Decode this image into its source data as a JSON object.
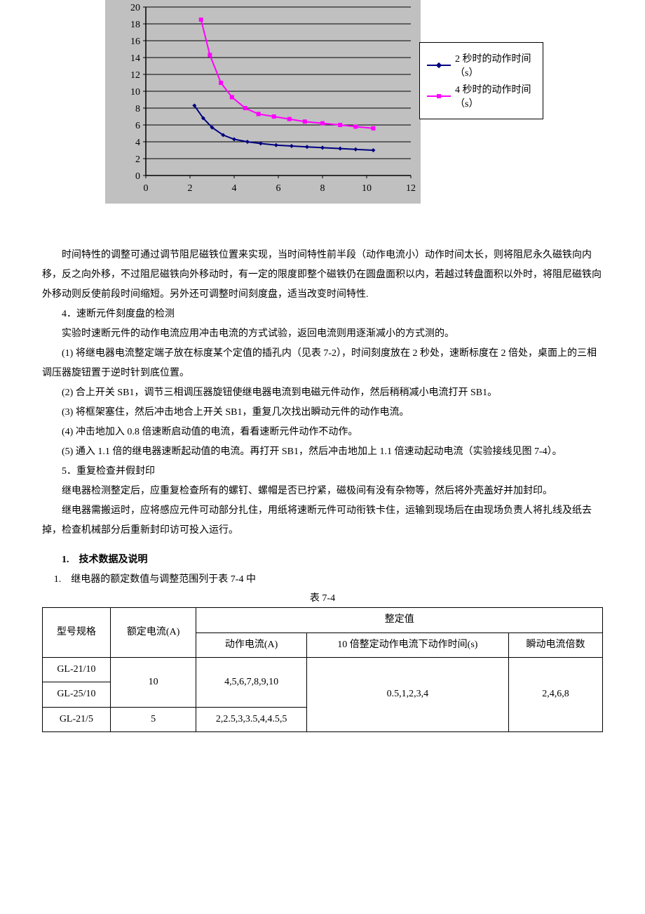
{
  "chart": {
    "type": "line",
    "background_color": "#c0c0c0",
    "plot_area_color": "#c0c0c0",
    "gridline_color": "#000000",
    "axis_color": "#000000",
    "tick_fontsize": 14,
    "xlim": [
      0,
      12
    ],
    "ylim": [
      0,
      20
    ],
    "x_ticks": [
      0,
      2,
      4,
      6,
      8,
      10,
      12
    ],
    "y_ticks": [
      0,
      2,
      4,
      6,
      8,
      10,
      12,
      14,
      16,
      18,
      20
    ],
    "gridlines_y_only": true,
    "series": [
      {
        "name": "2 秒时的动作时间（s）",
        "color": "#000080",
        "marker": "diamond",
        "marker_size": 6,
        "line_width": 2,
        "points": [
          [
            2.2,
            8.3
          ],
          [
            2.6,
            6.8
          ],
          [
            3.0,
            5.7
          ],
          [
            3.5,
            4.8
          ],
          [
            4.0,
            4.3
          ],
          [
            4.6,
            4.0
          ],
          [
            5.2,
            3.8
          ],
          [
            5.9,
            3.6
          ],
          [
            6.6,
            3.5
          ],
          [
            7.3,
            3.4
          ],
          [
            8.0,
            3.3
          ],
          [
            8.8,
            3.2
          ],
          [
            9.5,
            3.1
          ],
          [
            10.3,
            3.0
          ]
        ]
      },
      {
        "name": "4 秒时的动作时间（s）",
        "color": "#ff00ff",
        "marker": "square",
        "marker_size": 6,
        "line_width": 2,
        "points": [
          [
            2.5,
            18.5
          ],
          [
            2.9,
            14.3
          ],
          [
            3.4,
            11.0
          ],
          [
            3.9,
            9.3
          ],
          [
            4.5,
            8.0
          ],
          [
            5.1,
            7.3
          ],
          [
            5.8,
            7.0
          ],
          [
            6.5,
            6.7
          ],
          [
            7.2,
            6.4
          ],
          [
            8.0,
            6.2
          ],
          [
            8.8,
            6.0
          ],
          [
            9.5,
            5.8
          ],
          [
            10.3,
            5.6
          ]
        ]
      }
    ],
    "legend": {
      "border_color": "#000000",
      "background": "#ffffff",
      "items": [
        {
          "label": "2 秒时的动作时间（s）",
          "color": "#000080",
          "marker": "diamond"
        },
        {
          "label": "4 秒时的动作时间（s）",
          "color": "#ff00ff",
          "marker": "square"
        }
      ]
    }
  },
  "text": {
    "p1": "时间特性的调整可通过调节阻尼磁铁位置来实现，当时间特性前半段（动作电流小）动作时间太长，则将阻尼永久磁铁向内移，反之向外移，不过阻尼磁铁向外移动时，有一定的限度即整个磁铁仍在圆盘面积以内，若越过转盘面积以外时，将阻尼磁铁向外移动则反使前段时间缩短。另外还可调整时间刻度盘，适当改变时间特性.",
    "h4": "4．速断元件刻度盘的检测",
    "p2": "实验时速断元件的动作电流应用冲击电流的方式试验，返回电流则用逐渐减小的方式测的。",
    "p3": "(1) 将继电器电流整定端子放在标度某个定值的插孔内（见表 7-2），时间刻度放在 2 秒处，速断标度在 2 倍处，桌面上的三相调压器旋钮置于逆时针到底位置。",
    "p4": "(2) 合上开关 SB1，调节三相调压器旋钮使继电器电流到电磁元件动作，然后稍稍减小电流打开 SB1。",
    "p5": "(3) 将框架塞住，然后冲击地合上开关 SB1，重复几次找出瞬动元件的动作电流。",
    "p6": " (4) 冲击地加入 0.8 倍速断启动值的电流，看看速断元件动作不动作。",
    "p7": "(5) 通入 1.1 倍的继电器速断起动值的电流。再打开 SB1，然后冲击地加上 1.1 倍速动起动电流（实验接线见图 7-4）。",
    "h5": "5．重复检查并假封印",
    "p8": "继电器检测整定后，应重复检查所有的螺钉、螺帽是否已拧紧，磁极间有没有杂物等，然后将外壳盖好并加封印。",
    "p9": "继电器需搬运时，应将感应元件可动部分扎住，用纸将速断元件可动衔铁卡住，运输到现场后在由现场负责人将扎线及纸去掉，检查机械部分后重新封印访可投入运行。",
    "sec1": "1.　技术数据及说明",
    "sec1sub": "1.　继电器的额定数值与调整范围列于表 7-4 中",
    "table_caption": "表 7-4"
  },
  "table": {
    "header_row1": [
      "型号规格",
      "额定电流(A)",
      "整定值"
    ],
    "header_row2": [
      "动作电流(A)",
      "10 倍整定动作电流下动作时间(s)",
      "瞬动电流倍数"
    ],
    "rows": [
      {
        "model": "GL-21/10",
        "rated": "10",
        "action_current": "4,5,6,7,8,9,10",
        "time": "0.5,1,2,3,4",
        "mult": "2,4,6,8"
      },
      {
        "model": "GL-25/10"
      },
      {
        "model": "GL-21/5",
        "rated": "5",
        "action_current": "2,2.5,3,3.5,4,4.5,5"
      }
    ]
  }
}
